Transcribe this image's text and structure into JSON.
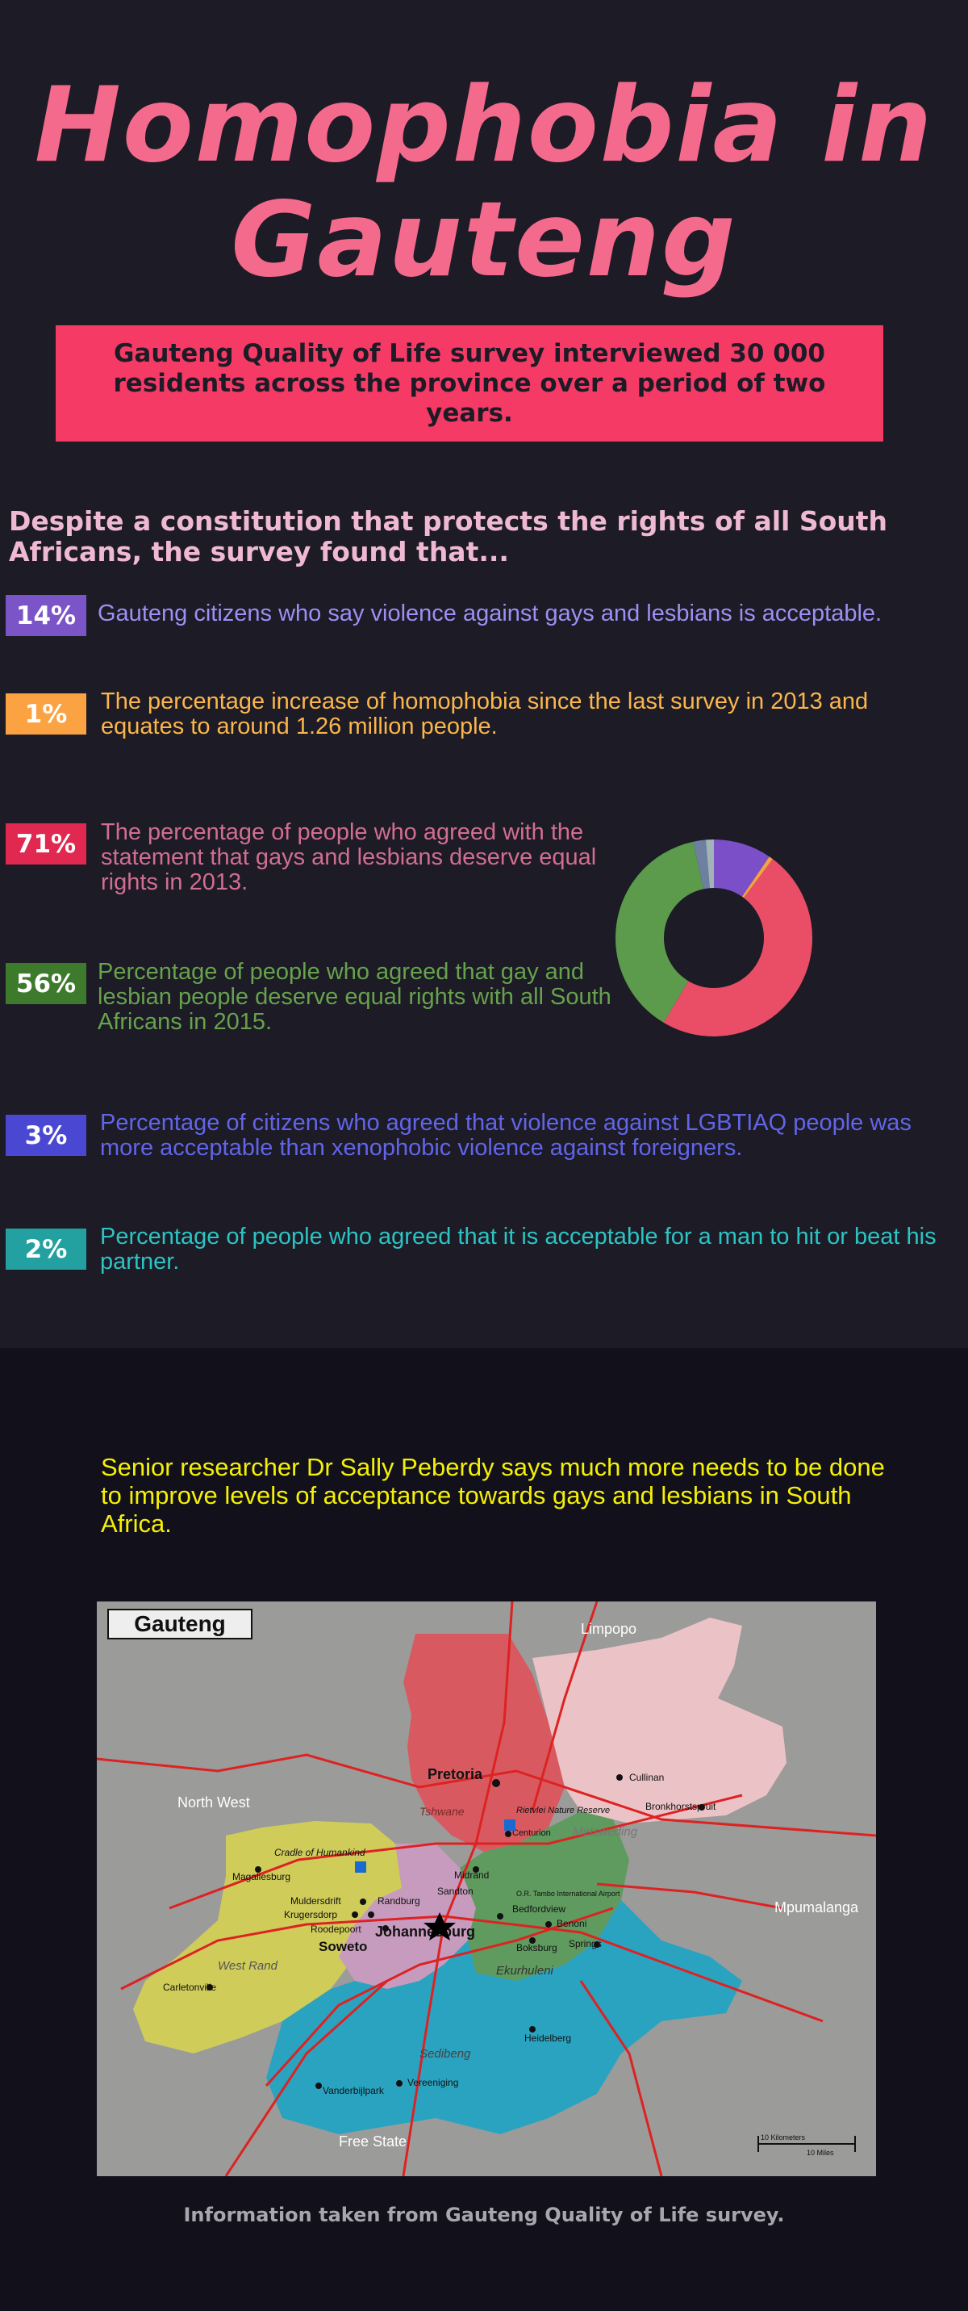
{
  "title": "Homophobia in Gauteng",
  "banner": "Gauteng Quality of Life survey interviewed 30 000 residents across the province over a period of two years.",
  "intro": "Despite a constitution that protects the rights of all South Africans, the survey found that...",
  "stats": [
    {
      "value": "14%",
      "text": "Gauteng citizens who say violence against gays and lesbians is acceptable.",
      "badge_color": "#7b55c7",
      "text_color": "#9d8ff3"
    },
    {
      "value": "1%",
      "text": "The percentage increase of homophobia since the last survey in 2013 and equates to around 1.26 million people.",
      "badge_color": "#fba243",
      "text_color": "#fbb64b"
    },
    {
      "value": "71%",
      "text": "The percentage of people who agreed with the statement that gays and lesbians deserve equal rights in 2013.",
      "badge_color": "#e02851",
      "text_color": "#d16e91"
    },
    {
      "value": "56%",
      "text": "Percentage of people who agreed that gay and lesbian people deserve equal rights with all South Africans in 2015.",
      "badge_color": "#3e7a2c",
      "text_color": "#67a24c"
    },
    {
      "value": "3%",
      "text": "Percentage of citizens who agreed that violence against LGBTIAQ people was more acceptable than xenophobic violence against foreigners.",
      "badge_color": "#4a48d2",
      "text_color": "#6265e8"
    },
    {
      "value": "2%",
      "text": "Percentage of people who agreed that it is acceptable for a man to hit or beat his partner.",
      "badge_color": "#23a0a0",
      "text_color": "#2cc4c3"
    }
  ],
  "donut": {
    "segments": [
      {
        "value": 14,
        "color": "#7a4fc7"
      },
      {
        "value": 1,
        "color": "#f3a244"
      },
      {
        "value": 71,
        "color": "#ea4e66"
      },
      {
        "value": 56,
        "color": "#5c9a4c"
      },
      {
        "value": 3,
        "color": "#6e7fa0"
      },
      {
        "value": 2,
        "color": "#9fb3b9"
      }
    ]
  },
  "quote": "Senior researcher Dr Sally Peberdy says much more needs to be done to improve levels of acceptance towards gays and lesbians in South Africa.",
  "map": {
    "title": "Gauteng",
    "places": [
      "Limpopo",
      "North West",
      "Mpumalanga",
      "Free State",
      "Pretoria",
      "Tshwane",
      "Rietvlei Nature Reserve",
      "Centurion",
      "Metsweding",
      "Cullinan",
      "Bronkhorstspruit",
      "Cradle of Humankind",
      "Magaliesburg",
      "Midrand",
      "Sandton",
      "Randburg",
      "Muldersdrift",
      "Krugersdorp",
      "Roodepoort",
      "Johannesburg",
      "Soweto",
      "West Rand",
      "Carletonville",
      "Bedfordview",
      "Benoni",
      "Boksburg",
      "Springs",
      "Ekurhuleni",
      "O.R. Tambo International Airport",
      "Heidelberg",
      "Sedibeng",
      "Vereeniging",
      "Vanderbijlpark"
    ],
    "scale_km": "10 Kilometers",
    "scale_mi": "10 Miles"
  },
  "source": "Information taken from Gauteng Quality of Life survey."
}
